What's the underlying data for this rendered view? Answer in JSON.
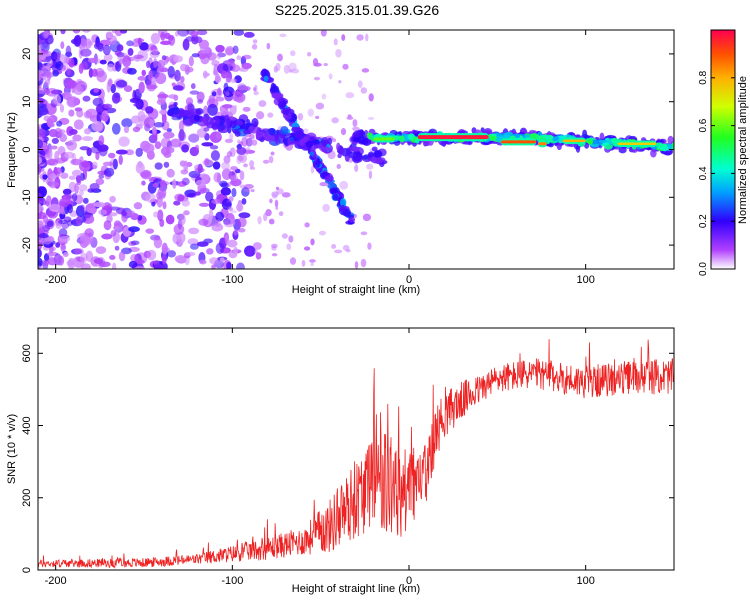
{
  "title": "S225.2025.315.01.39.G26",
  "chart_data": [
    {
      "type": "heatmap",
      "xlabel": "Height of straight line (km)",
      "ylabel": "Frequency (Hz)",
      "xlim": [
        -210,
        150
      ],
      "ylim": [
        -25,
        25
      ],
      "xticks": [
        -200,
        -100,
        0,
        100
      ],
      "yticks": [
        -20,
        -10,
        0,
        10,
        20
      ],
      "colorbar": {
        "label": "Normalized spectral amplitude",
        "range": [
          0,
          1
        ],
        "ticks": [
          0.0,
          0.2,
          0.4,
          0.6,
          0.8
        ],
        "colors": [
          "#ffffff",
          "#7a00ff",
          "#0000ff",
          "#00e6ff",
          "#00ff40",
          "#ffff00",
          "#ff7a00",
          "#ff0040"
        ]
      },
      "features": [
        {
          "name": "noise",
          "x": [
            -210,
            -120
          ],
          "freq_range": [
            -25,
            25
          ],
          "amplitude": 0.1
        },
        {
          "name": "main track",
          "x": [
            -130,
            -10
          ],
          "freq": [
            8,
            -3
          ],
          "amplitude": 0.15
        },
        {
          "name": "descending branch",
          "x": [
            -80,
            -33
          ],
          "freq": [
            16,
            -15
          ],
          "amplitude": 0.15
        },
        {
          "name": "steady carrier",
          "x": [
            -30,
            150
          ],
          "freq": [
            2.5,
            0
          ],
          "amplitude": 0.9
        }
      ]
    },
    {
      "type": "line",
      "xlabel": "Height of straight line (km)",
      "ylabel": "SNR (10 * v/v)",
      "xlim": [
        -210,
        150
      ],
      "ylim": [
        0,
        670
      ],
      "xticks": [
        -200,
        -100,
        0,
        100
      ],
      "yticks": [
        0,
        200,
        400,
        600
      ],
      "color": "#ee2222",
      "profile": [
        {
          "x": -210,
          "y": 18
        },
        {
          "x": -150,
          "y": 20
        },
        {
          "x": -120,
          "y": 30
        },
        {
          "x": -100,
          "y": 45
        },
        {
          "x": -80,
          "y": 60
        },
        {
          "x": -60,
          "y": 80
        },
        {
          "x": -45,
          "y": 120
        },
        {
          "x": -35,
          "y": 170
        },
        {
          "x": -25,
          "y": 220
        },
        {
          "x": -15,
          "y": 240
        },
        {
          "x": -5,
          "y": 200
        },
        {
          "x": 0,
          "y": 240
        },
        {
          "x": 5,
          "y": 230
        },
        {
          "x": 10,
          "y": 290
        },
        {
          "x": 15,
          "y": 380
        },
        {
          "x": 20,
          "y": 430
        },
        {
          "x": 30,
          "y": 470
        },
        {
          "x": 40,
          "y": 500
        },
        {
          "x": 50,
          "y": 530
        },
        {
          "x": 70,
          "y": 545
        },
        {
          "x": 100,
          "y": 520
        },
        {
          "x": 130,
          "y": 535
        },
        {
          "x": 150,
          "y": 535
        }
      ],
      "noise_amplitude": [
        {
          "x": -210,
          "a": 10
        },
        {
          "x": -120,
          "a": 15
        },
        {
          "x": -60,
          "a": 40
        },
        {
          "x": -35,
          "a": 100
        },
        {
          "x": -10,
          "a": 150
        },
        {
          "x": 10,
          "a": 80
        },
        {
          "x": 40,
          "a": 40
        },
        {
          "x": 150,
          "a": 50
        }
      ]
    }
  ]
}
